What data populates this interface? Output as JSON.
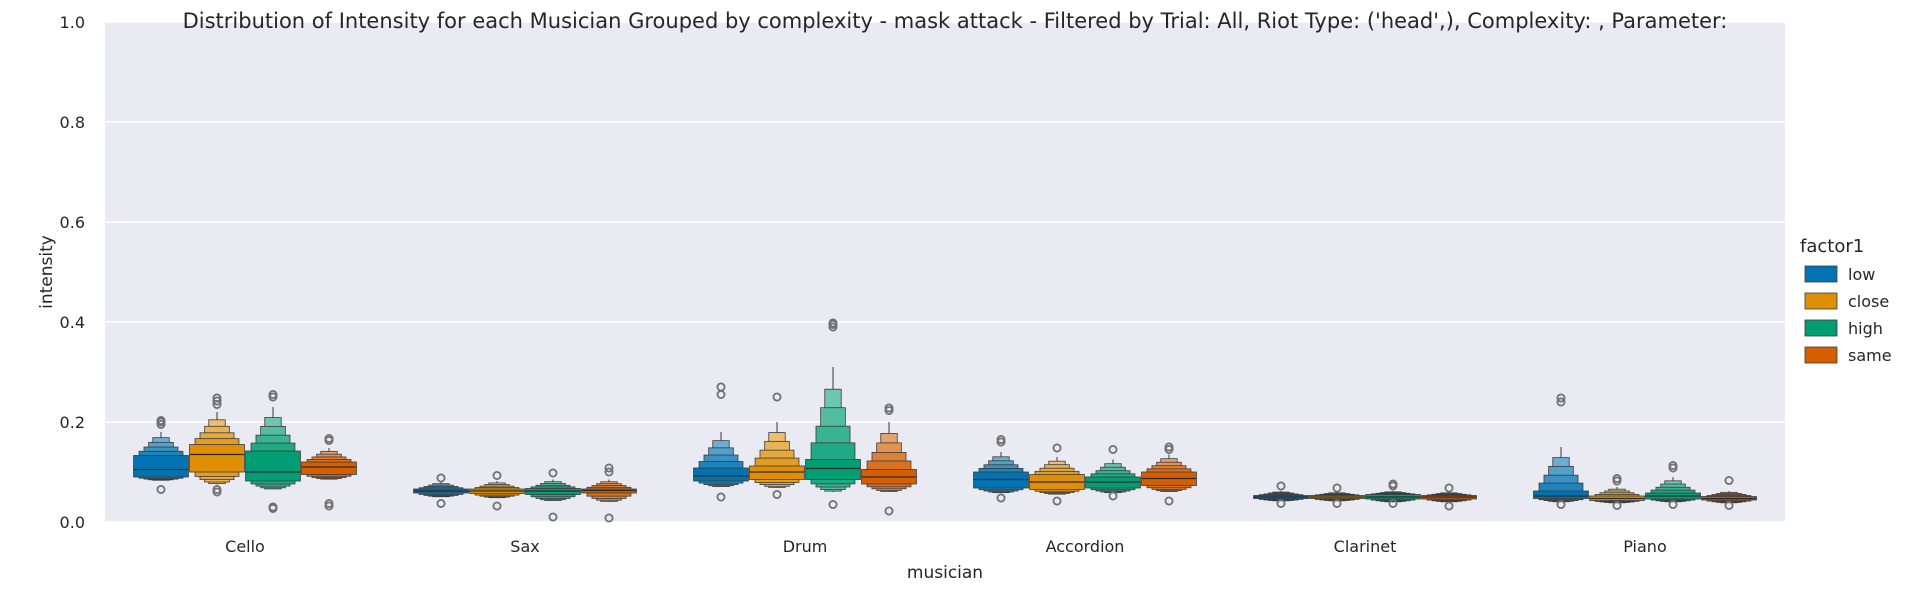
{
  "chart_data": {
    "type": "boxen",
    "title": "Distribution of Intensity for each Musician Grouped by complexity - mask attack - Filtered by Trial: All, Riot Type: ('head',), Complexity: , Parameter:",
    "xlabel": "musician",
    "ylabel": "intensity",
    "ylim": [
      0.0,
      1.0
    ],
    "yticks": [
      "0.0",
      "0.2",
      "0.4",
      "0.6",
      "0.8",
      "1.0"
    ],
    "grid": true,
    "background": "#eaeaf2",
    "legend": {
      "title": "factor1",
      "position": "right",
      "entries": [
        "low",
        "close",
        "high",
        "same"
      ]
    },
    "categories": [
      "Cello",
      "Sax",
      "Drum",
      "Accordion",
      "Clarinet",
      "Piano"
    ],
    "series": [
      {
        "name": "low",
        "color": "#0173b2",
        "boxes": [
          {
            "median": 0.105,
            "q1": 0.09,
            "q3": 0.133,
            "min": 0.083,
            "max": 0.18,
            "outliers": [
              0.065,
              0.195,
              0.2,
              0.203
            ]
          },
          {
            "median": 0.062,
            "q1": 0.058,
            "q3": 0.066,
            "min": 0.05,
            "max": 0.08,
            "outliers": [
              0.037,
              0.088
            ]
          },
          {
            "median": 0.092,
            "q1": 0.082,
            "q3": 0.108,
            "min": 0.07,
            "max": 0.18,
            "outliers": [
              0.05,
              0.255,
              0.27
            ]
          },
          {
            "median": 0.085,
            "q1": 0.068,
            "q3": 0.1,
            "min": 0.058,
            "max": 0.14,
            "outliers": [
              0.048,
              0.16,
              0.165
            ]
          },
          {
            "median": 0.05,
            "q1": 0.047,
            "q3": 0.053,
            "min": 0.042,
            "max": 0.062,
            "outliers": [
              0.037,
              0.072
            ]
          },
          {
            "median": 0.052,
            "q1": 0.047,
            "q3": 0.062,
            "min": 0.04,
            "max": 0.15,
            "outliers": [
              0.035,
              0.24,
              0.248
            ]
          }
        ]
      },
      {
        "name": "close",
        "color": "#de8f05",
        "boxes": [
          {
            "median": 0.135,
            "q1": 0.1,
            "q3": 0.155,
            "min": 0.075,
            "max": 0.22,
            "outliers": [
              0.06,
              0.065,
              0.235,
              0.242,
              0.248
            ]
          },
          {
            "median": 0.062,
            "q1": 0.057,
            "q3": 0.066,
            "min": 0.048,
            "max": 0.082,
            "outliers": [
              0.032,
              0.093
            ]
          },
          {
            "median": 0.1,
            "q1": 0.085,
            "q3": 0.112,
            "min": 0.068,
            "max": 0.2,
            "outliers": [
              0.055,
              0.25
            ]
          },
          {
            "median": 0.08,
            "q1": 0.065,
            "q3": 0.095,
            "min": 0.055,
            "max": 0.13,
            "outliers": [
              0.042,
              0.148
            ]
          },
          {
            "median": 0.05,
            "q1": 0.047,
            "q3": 0.053,
            "min": 0.042,
            "max": 0.06,
            "outliers": [
              0.037,
              0.068
            ]
          },
          {
            "median": 0.047,
            "q1": 0.043,
            "q3": 0.052,
            "min": 0.038,
            "max": 0.07,
            "outliers": [
              0.033,
              0.082,
              0.087
            ]
          }
        ]
      },
      {
        "name": "high",
        "color": "#029e73",
        "boxes": [
          {
            "median": 0.1,
            "q1": 0.082,
            "q3": 0.142,
            "min": 0.065,
            "max": 0.23,
            "outliers": [
              0.027,
              0.03,
              0.25,
              0.255
            ]
          },
          {
            "median": 0.062,
            "q1": 0.055,
            "q3": 0.067,
            "min": 0.042,
            "max": 0.085,
            "outliers": [
              0.01,
              0.098
            ]
          },
          {
            "median": 0.107,
            "q1": 0.085,
            "q3": 0.125,
            "min": 0.06,
            "max": 0.31,
            "outliers": [
              0.035,
              0.39,
              0.395,
              0.398
            ]
          },
          {
            "median": 0.08,
            "q1": 0.068,
            "q3": 0.09,
            "min": 0.058,
            "max": 0.125,
            "outliers": [
              0.052,
              0.145
            ]
          },
          {
            "median": 0.05,
            "q1": 0.046,
            "q3": 0.055,
            "min": 0.04,
            "max": 0.062,
            "outliers": [
              0.037,
              0.072,
              0.076
            ]
          },
          {
            "median": 0.052,
            "q1": 0.046,
            "q3": 0.058,
            "min": 0.04,
            "max": 0.09,
            "outliers": [
              0.035,
              0.108,
              0.113
            ]
          }
        ]
      },
      {
        "name": "same",
        "color": "#d55e00",
        "boxes": [
          {
            "median": 0.11,
            "q1": 0.095,
            "q3": 0.12,
            "min": 0.085,
            "max": 0.148,
            "outliers": [
              0.032,
              0.037,
              0.163,
              0.167
            ]
          },
          {
            "median": 0.063,
            "q1": 0.058,
            "q3": 0.066,
            "min": 0.04,
            "max": 0.085,
            "outliers": [
              0.008,
              0.1,
              0.108
            ]
          },
          {
            "median": 0.09,
            "q1": 0.076,
            "q3": 0.105,
            "min": 0.06,
            "max": 0.2,
            "outliers": [
              0.022,
              0.223,
              0.228
            ]
          },
          {
            "median": 0.087,
            "q1": 0.073,
            "q3": 0.1,
            "min": 0.06,
            "max": 0.135,
            "outliers": [
              0.042,
              0.145,
              0.15
            ]
          },
          {
            "median": 0.05,
            "q1": 0.046,
            "q3": 0.053,
            "min": 0.04,
            "max": 0.06,
            "outliers": [
              0.032,
              0.068
            ]
          },
          {
            "median": 0.047,
            "q1": 0.044,
            "q3": 0.051,
            "min": 0.038,
            "max": 0.062,
            "outliers": [
              0.033,
              0.083
            ]
          }
        ]
      }
    ]
  }
}
